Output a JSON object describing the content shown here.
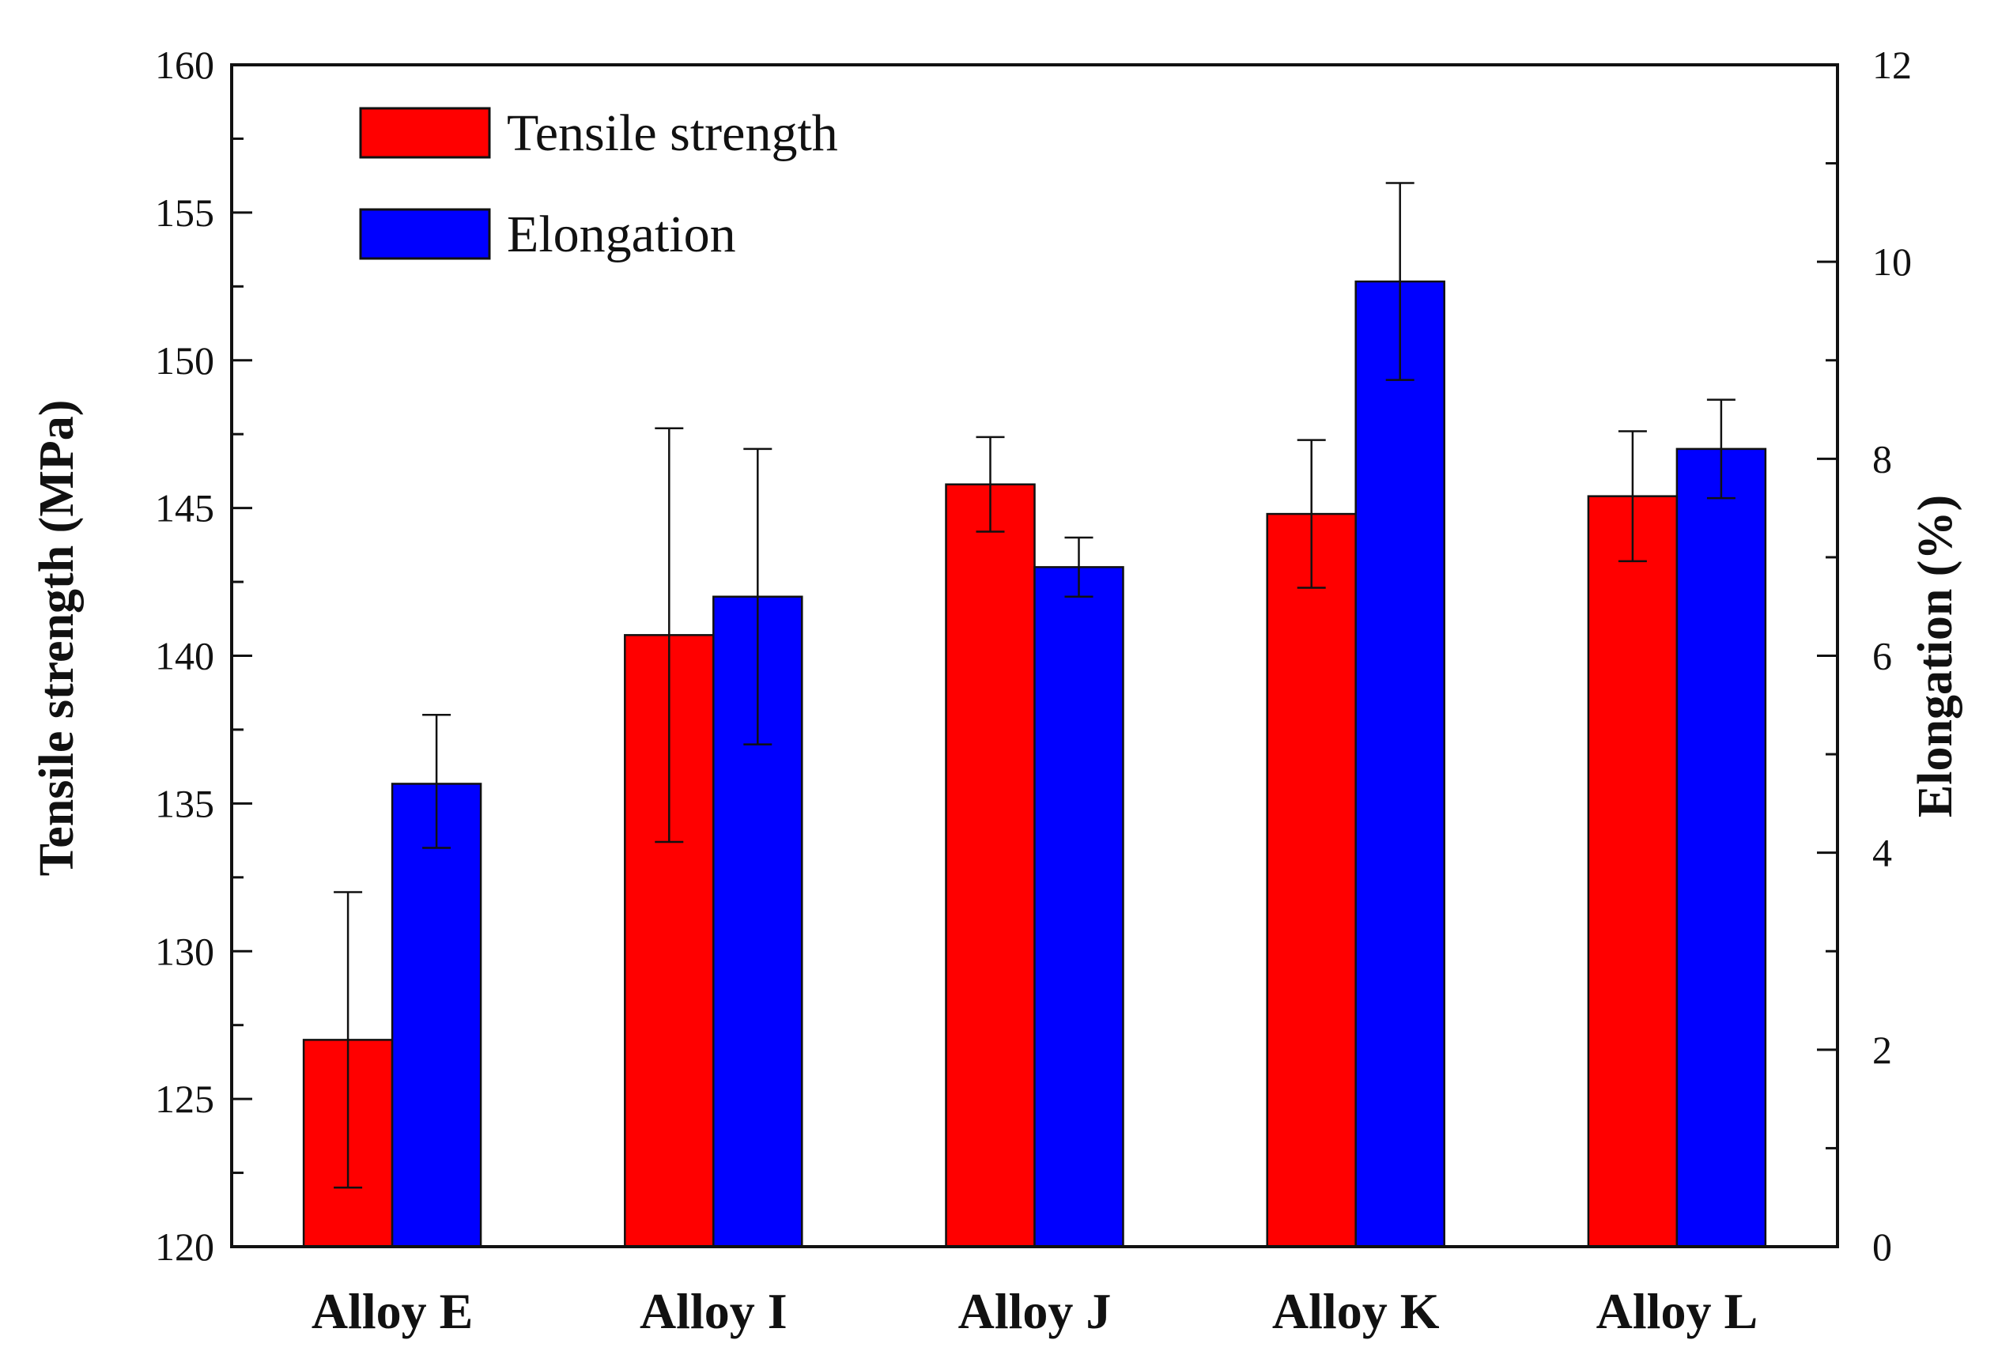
{
  "chart_data": {
    "type": "bar",
    "title": "",
    "categories": [
      "Alloy E",
      "Alloy I",
      "Alloy J",
      "Alloy K",
      "Alloy L"
    ],
    "series": [
      {
        "name": "Tensile strength",
        "axis": "left",
        "color": "#ff0000",
        "values": [
          127.0,
          140.7,
          145.8,
          144.8,
          145.4
        ],
        "error_low": [
          122.0,
          133.7,
          144.2,
          142.3,
          143.2
        ],
        "error_high": [
          132.0,
          147.7,
          147.4,
          147.3,
          147.6
        ]
      },
      {
        "name": "Elongation",
        "axis": "right",
        "color": "#0000ff",
        "values": [
          4.7,
          6.6,
          6.9,
          9.8,
          8.1
        ],
        "error_low": [
          4.05,
          5.1,
          6.6,
          8.8,
          7.6
        ],
        "error_high": [
          5.4,
          8.1,
          7.2,
          10.8,
          8.6
        ]
      }
    ],
    "ylabel": "Tensile strength (MPa)",
    "ylabel_right": "Elongation (%)",
    "xlabel": "",
    "ylim": [
      120,
      160
    ],
    "ylim_right": [
      0,
      12
    ],
    "yticks": [
      120,
      125,
      130,
      135,
      140,
      145,
      150,
      155,
      160
    ],
    "yticks_right": [
      0,
      2,
      4,
      6,
      8,
      10,
      12
    ],
    "grid": false,
    "legend_position": "top-left"
  }
}
